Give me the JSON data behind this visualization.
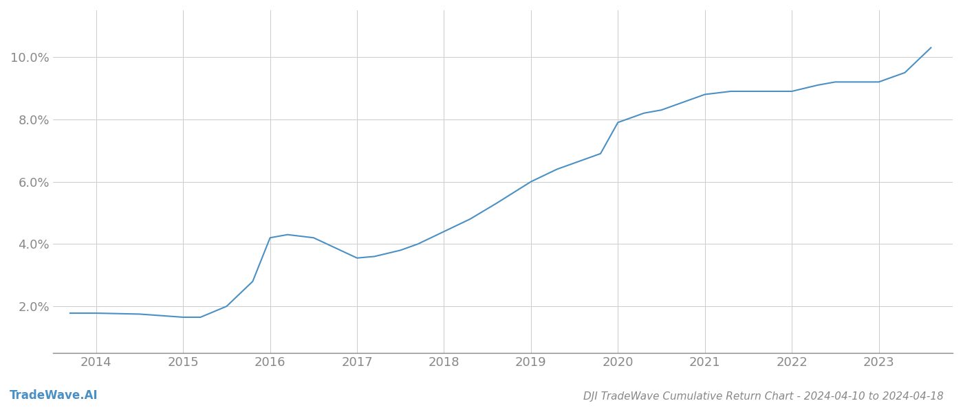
{
  "title": "DJI TradeWave Cumulative Return Chart - 2024-04-10 to 2024-04-18",
  "watermark": "TradeWave.AI",
  "x_years": [
    2014,
    2015,
    2016,
    2017,
    2018,
    2019,
    2020,
    2021,
    2022,
    2023
  ],
  "line_color": "#4a90c4",
  "line_width": 1.5,
  "background_color": "#ffffff",
  "grid_color": "#cccccc",
  "ylim": [
    0.005,
    0.115
  ],
  "yticks": [
    0.02,
    0.04,
    0.06,
    0.08,
    0.1
  ],
  "xlim": [
    2013.5,
    2023.85
  ],
  "title_fontsize": 11,
  "watermark_fontsize": 12,
  "tick_fontsize": 13,
  "tick_color": "#888888",
  "spine_color": "#888888",
  "x_data": [
    2013.7,
    2014.0,
    2014.5,
    2015.0,
    2015.2,
    2015.5,
    2015.8,
    2016.0,
    2016.2,
    2016.5,
    2017.0,
    2017.2,
    2017.5,
    2017.7,
    2018.0,
    2018.3,
    2018.6,
    2019.0,
    2019.3,
    2019.5,
    2019.8,
    2020.0,
    2020.3,
    2020.5,
    2020.8,
    2021.0,
    2021.3,
    2021.5,
    2021.8,
    2022.0,
    2022.3,
    2022.5,
    2022.8,
    2023.0,
    2023.3,
    2023.6
  ],
  "y_data": [
    0.0178,
    0.0178,
    0.0175,
    0.0165,
    0.0165,
    0.02,
    0.028,
    0.042,
    0.043,
    0.042,
    0.0355,
    0.036,
    0.038,
    0.04,
    0.044,
    0.048,
    0.053,
    0.06,
    0.064,
    0.066,
    0.069,
    0.079,
    0.082,
    0.083,
    0.086,
    0.088,
    0.089,
    0.089,
    0.089,
    0.089,
    0.091,
    0.092,
    0.092,
    0.092,
    0.095,
    0.103
  ]
}
